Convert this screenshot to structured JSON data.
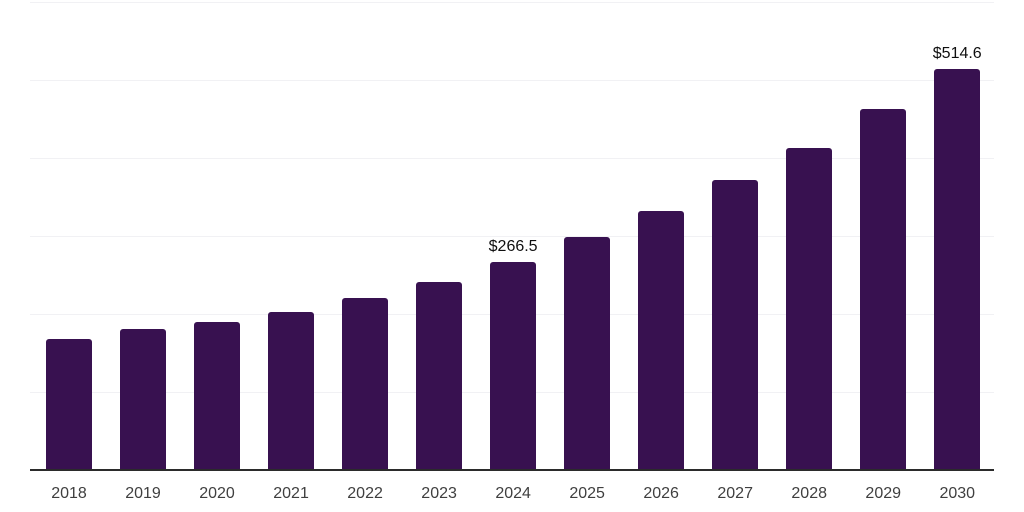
{
  "chart_data": {
    "type": "bar",
    "title": "",
    "xlabel": "",
    "ylabel": "",
    "categories": [
      "2018",
      "2019",
      "2020",
      "2021",
      "2022",
      "2023",
      "2024",
      "2025",
      "2026",
      "2027",
      "2028",
      "2029",
      "2030"
    ],
    "values": [
      168.0,
      180.3,
      190.2,
      202.5,
      220.1,
      241.0,
      266.5,
      298.5,
      331.7,
      371.8,
      413.2,
      462.4,
      514.6
    ],
    "value_labels": [
      "",
      "",
      "",
      "",
      "",
      "",
      "$266.5",
      "",
      "",
      "",
      "",
      "",
      "$514.6"
    ],
    "ylim": [
      0,
      600
    ],
    "grid_step": 100,
    "grid": true,
    "y_axis_tick_labels_visible": false,
    "legend_position": "none",
    "colors": {
      "bar": "#381150",
      "axis": "#2b2b2b",
      "gridline": "#f1f1f4",
      "tick_label": "#3f3f3f",
      "value_label": "#0f0f0f",
      "background": "#ffffff"
    }
  }
}
